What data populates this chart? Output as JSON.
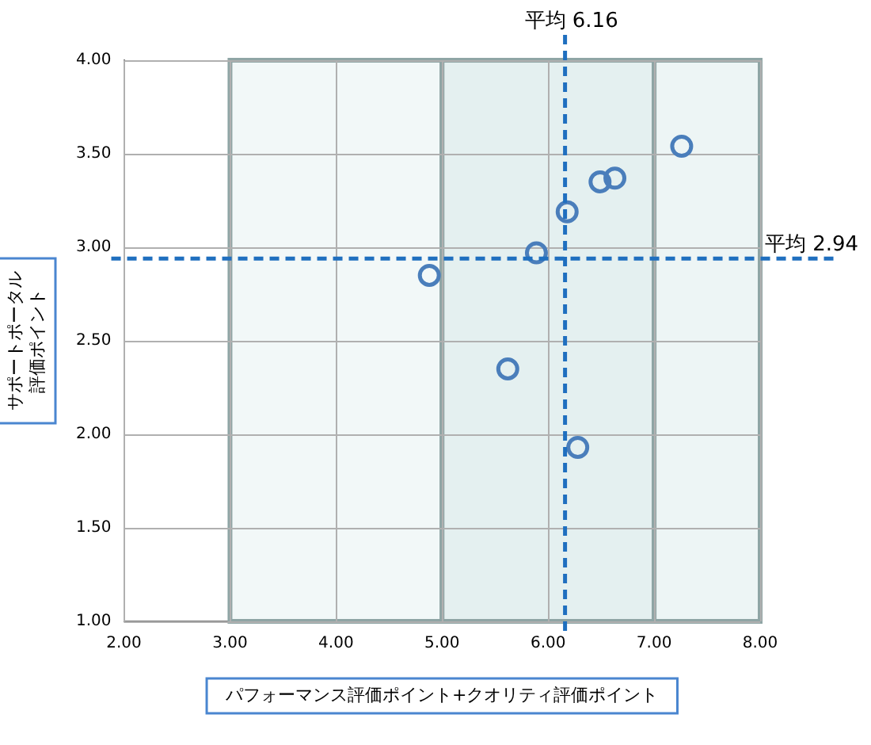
{
  "chart_data": {
    "type": "scatter",
    "xlabel": "パフォーマンス評価ポイント+クオリティ評価ポイント",
    "ylabel": "サポートポータル評価ポイント",
    "x": [
      7.26,
      6.63,
      6.49,
      6.18,
      5.89,
      4.88,
      5.62,
      6.28
    ],
    "series": [
      {
        "color": "#4a7ebb",
        "values": [
          3.54,
          3.37,
          3.35,
          3.19,
          2.97,
          2.85,
          2.35,
          1.93
        ]
      }
    ],
    "xlim": [
      2,
      8
    ],
    "xticks": [
      {
        "value": 2,
        "label": "2.00"
      },
      {
        "value": 3,
        "label": "3.00"
      },
      {
        "value": 4,
        "label": "4.00"
      },
      {
        "value": 5,
        "label": "5.00"
      },
      {
        "value": 6,
        "label": "6.00"
      },
      {
        "value": 7,
        "label": "7.00"
      },
      {
        "value": 8,
        "label": "8.00"
      }
    ],
    "ylim": [
      1,
      4
    ],
    "yticks": [
      {
        "value": 1,
        "label": "1.00"
      },
      {
        "value": 1.5,
        "label": "1.50"
      },
      {
        "value": 2,
        "label": "2.00"
      },
      {
        "value": 2.5,
        "label": "2.50"
      },
      {
        "value": 3,
        "label": "3.00"
      },
      {
        "value": 3.5,
        "label": "3.50"
      },
      {
        "value": 4,
        "label": "4.00"
      }
    ],
    "ref_lines": [
      {
        "axis": "x",
        "value": 6.16,
        "label": "平均 6.16",
        "color": "#1f6fbf",
        "line_style": "dashed"
      },
      {
        "axis": "y",
        "value": 2.94,
        "label": "平均 2.94",
        "color": "#1f6fbf",
        "line_style": "dashed"
      }
    ],
    "bands": [
      {
        "axis": "x",
        "from": 3,
        "to": 5,
        "color": "#f2f8f8"
      },
      {
        "axis": "x",
        "from": 5,
        "to": 7,
        "color": "#e4f0f0"
      },
      {
        "axis": "x",
        "from": 7,
        "to": 8,
        "color": "#edf5f5"
      }
    ],
    "grid": true,
    "legend": false,
    "marker": "circle"
  }
}
